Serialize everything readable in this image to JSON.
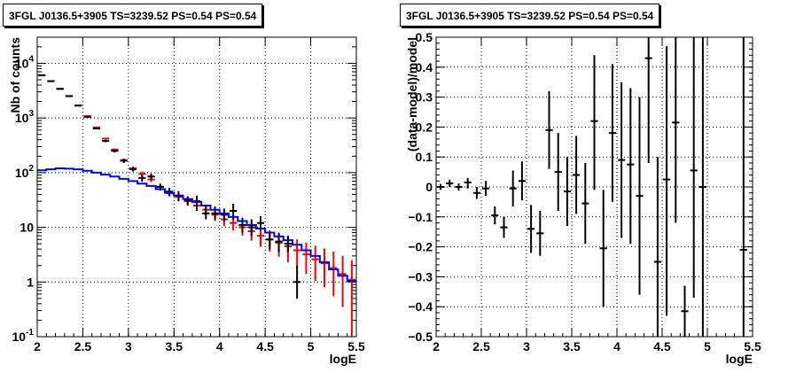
{
  "chart_data": [
    {
      "type": "scatter",
      "title": "3FGL J0136.5+3905 TS=3239.52 PS=0.54 PS=0.54",
      "xlabel": "logE",
      "ylabel": "Nb of counts",
      "xlim": [
        2,
        5.5
      ],
      "ylim": [
        0.1,
        30000
      ],
      "y_scale": "log",
      "grid": true,
      "x_ticks": [
        {
          "v": 2,
          "label": "2"
        },
        {
          "v": 2.5,
          "label": "2.5"
        },
        {
          "v": 3,
          "label": "3"
        },
        {
          "v": 3.5,
          "label": "3.5"
        },
        {
          "v": 4,
          "label": "4"
        },
        {
          "v": 4.5,
          "label": "4.5"
        },
        {
          "v": 5,
          "label": "5"
        },
        {
          "v": 5.5,
          "label": "5.5"
        }
      ],
      "y_ticks": [
        {
          "v": 0.1,
          "base": "10",
          "exp": "-1"
        },
        {
          "v": 1,
          "base": "1",
          "exp": ""
        },
        {
          "v": 10,
          "base": "10",
          "exp": ""
        },
        {
          "v": 100,
          "base": "10",
          "exp": "2"
        },
        {
          "v": 1000,
          "base": "10",
          "exp": "3"
        },
        {
          "v": 10000,
          "base": "10",
          "exp": "4"
        }
      ],
      "series": [
        {
          "color": "#ff0000",
          "style": "errorbar",
          "x": [
            2.05,
            2.15,
            2.25,
            2.35,
            2.45,
            2.55,
            2.65,
            2.75,
            2.85,
            2.95,
            3.05,
            3.15,
            3.25,
            3.35,
            3.45,
            3.55,
            3.65,
            3.75,
            3.85,
            3.95,
            4.05,
            4.15,
            4.25,
            4.35,
            4.45,
            4.55,
            4.65,
            4.75,
            4.85,
            4.95,
            5.05,
            5.15,
            5.25,
            5.35,
            5.45
          ],
          "y": [
            6000,
            4700,
            3400,
            2500,
            1700,
            1080,
            670,
            420,
            265,
            170,
            120,
            95,
            75,
            55,
            42,
            36,
            30,
            25,
            21,
            17,
            14,
            12,
            10,
            8.5,
            7,
            6,
            5.2,
            4.5,
            3.8,
            3.2,
            2.6,
            2.2,
            1.8,
            1.4,
            1.1
          ],
          "y_lo": [
            6000,
            4700,
            3400,
            2500,
            1700,
            1080,
            670,
            420,
            265,
            170,
            110,
            85,
            67,
            48,
            37,
            30,
            25,
            20,
            16.5,
            13,
            10.5,
            8.7,
            7,
            5.7,
            4.4,
            3.6,
            2.9,
            2.3,
            1.8,
            1.4,
            1.05,
            0.8,
            0.55,
            0.35,
            0.1
          ],
          "y_hi": [
            6000,
            4700,
            3400,
            2500,
            1700,
            1080,
            670,
            420,
            265,
            170,
            130,
            105,
            85,
            62,
            48,
            43,
            36,
            31,
            26,
            22,
            18.5,
            16,
            13.5,
            12,
            10,
            8.8,
            7.8,
            7,
            6,
            5.3,
            4.6,
            4.1,
            3.6,
            3.0,
            2.5
          ]
        },
        {
          "color": "#000000",
          "style": "errorbar",
          "x": [
            2.05,
            2.15,
            2.25,
            2.35,
            2.45,
            2.55,
            2.65,
            2.75,
            2.85,
            2.95,
            3.05,
            3.15,
            3.25,
            3.35,
            3.45,
            3.55,
            3.65,
            3.75,
            3.85,
            3.95,
            4.05,
            4.15,
            4.25,
            4.35,
            4.45,
            4.55,
            4.65,
            4.75,
            4.85
          ],
          "y": [
            6050,
            4720,
            3410,
            2520,
            1680,
            1050,
            640,
            380,
            250,
            165,
            115,
            80,
            85,
            55,
            45,
            38,
            31,
            30,
            18,
            18,
            17,
            20,
            11,
            10,
            12,
            6,
            5.5,
            5,
            1
          ],
          "y_lo": [
            6000,
            4680,
            3380,
            2490,
            1660,
            1030,
            620,
            360,
            235,
            150,
            105,
            68,
            74,
            47,
            37,
            30,
            25,
            20,
            14,
            14,
            13,
            14,
            8,
            7,
            9,
            4,
            3.5,
            3.5,
            0.5
          ],
          "y_hi": [
            6100,
            4760,
            3440,
            2550,
            1700,
            1070,
            660,
            400,
            265,
            180,
            125,
            92,
            96,
            63,
            53,
            46,
            37,
            38,
            24,
            24,
            22,
            27,
            15,
            14,
            16,
            8,
            8,
            7,
            2
          ]
        },
        {
          "color": "#0000ff",
          "style": "step",
          "x": [
            2.05,
            2.15,
            2.25,
            2.35,
            2.45,
            2.55,
            2.65,
            2.75,
            2.85,
            2.95,
            3.05,
            3.15,
            3.25,
            3.35,
            3.45,
            3.55,
            3.65,
            3.75,
            3.85,
            3.95,
            4.05,
            4.15,
            4.25,
            4.35,
            4.45,
            4.55,
            4.65,
            4.75,
            4.85,
            4.95,
            5.05,
            5.15,
            5.25,
            5.35,
            5.45
          ],
          "y": [
            110,
            115,
            120,
            118,
            115,
            108,
            100,
            92,
            85,
            77,
            70,
            63,
            57,
            50,
            43,
            38,
            33,
            29,
            25,
            21,
            18,
            15.5,
            13,
            11,
            9.5,
            8,
            6.8,
            5.8,
            4.8,
            3.8,
            3.0,
            2.3,
            1.7,
            1.3,
            1.05
          ]
        }
      ]
    },
    {
      "type": "scatter",
      "title": "3FGL J0136.5+3905 TS=3239.52 PS=0.54 PS=0.54",
      "xlabel": "logE",
      "ylabel": "(data-model)/model",
      "xlim": [
        2,
        5.5
      ],
      "ylim": [
        -0.5,
        0.5
      ],
      "grid": true,
      "x_ticks": [
        {
          "v": 2,
          "label": "2"
        },
        {
          "v": 2.5,
          "label": "2.5"
        },
        {
          "v": 3,
          "label": "3"
        },
        {
          "v": 3.5,
          "label": "3.5"
        },
        {
          "v": 4,
          "label": "4"
        },
        {
          "v": 4.5,
          "label": "4.5"
        },
        {
          "v": 5,
          "label": "5"
        },
        {
          "v": 5.5,
          "label": "5.5"
        }
      ],
      "y_ticks": [
        {
          "v": 0.5,
          "label": "0.5"
        },
        {
          "v": 0.4,
          "label": "0.4"
        },
        {
          "v": 0.3,
          "label": "0.3"
        },
        {
          "v": 0.2,
          "label": "0.2"
        },
        {
          "v": 0.1,
          "label": "0.1"
        },
        {
          "v": 0,
          "label": "0"
        },
        {
          "v": -0.1,
          "label": "−0.1"
        },
        {
          "v": -0.2,
          "label": "−0.2"
        },
        {
          "v": -0.3,
          "label": "−0.3"
        },
        {
          "v": -0.4,
          "label": "−0.4"
        },
        {
          "v": -0.5,
          "label": "−0.5"
        }
      ],
      "series": [
        {
          "color": "#000000",
          "style": "errorbar",
          "x": [
            2.05,
            2.15,
            2.25,
            2.35,
            2.45,
            2.55,
            2.65,
            2.75,
            2.85,
            2.95,
            3.05,
            3.15,
            3.25,
            3.35,
            3.45,
            3.55,
            3.65,
            3.75,
            3.85,
            3.95,
            4.05,
            4.15,
            4.25,
            4.35,
            4.45,
            4.55,
            4.65,
            4.75,
            4.85,
            4.95,
            5.4
          ],
          "y": [
            0.0,
            0.012,
            0.0,
            0.015,
            -0.02,
            -0.005,
            -0.095,
            -0.135,
            -0.005,
            0.02,
            -0.14,
            -0.155,
            0.19,
            0.05,
            -0.015,
            0.04,
            -0.055,
            0.22,
            -0.205,
            0.18,
            0.09,
            0.075,
            -0.03,
            0.43,
            -0.25,
            0.025,
            0.215,
            -0.415,
            0.055,
            0.0,
            -0.21
          ],
          "y_lo": [
            -0.01,
            0.0,
            -0.012,
            -0.005,
            -0.04,
            -0.03,
            -0.125,
            -0.17,
            -0.065,
            -0.045,
            -0.22,
            -0.23,
            0.06,
            -0.08,
            -0.13,
            -0.09,
            -0.19,
            -0.01,
            -0.4,
            -0.05,
            -0.17,
            -0.19,
            -0.36,
            0.08,
            -0.5,
            -0.43,
            -0.12,
            -0.5,
            -0.37,
            -0.5,
            -0.5
          ],
          "y_hi": [
            0.01,
            0.024,
            0.012,
            0.03,
            0.0,
            0.02,
            -0.065,
            -0.1,
            0.055,
            0.085,
            -0.06,
            -0.08,
            0.32,
            0.18,
            0.1,
            0.17,
            0.08,
            0.44,
            -0.01,
            0.41,
            0.35,
            0.33,
            0.3,
            0.5,
            0.1,
            0.47,
            0.5,
            -0.33,
            0.5,
            0.5,
            0.5
          ]
        }
      ]
    }
  ]
}
